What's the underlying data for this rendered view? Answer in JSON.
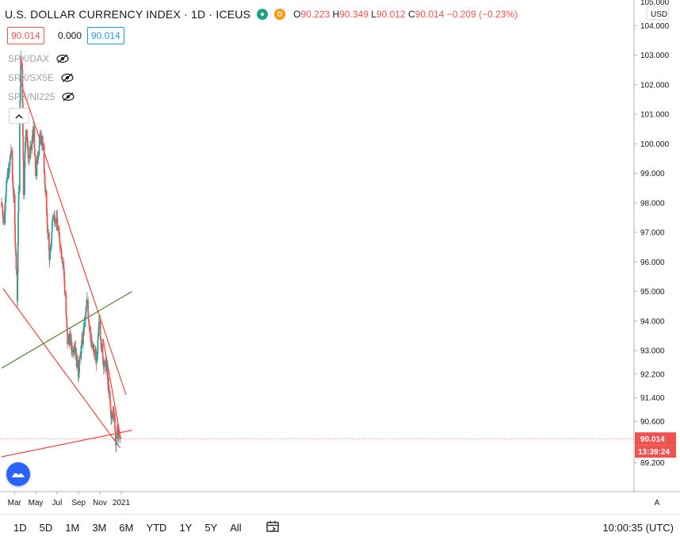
{
  "header": {
    "title": "U.S. DOLLAR CURRENCY INDEX · 1D · ICEUS",
    "delay_badge": "D",
    "ohlc": {
      "o_label": "O",
      "o": "90.223",
      "h_label": "H",
      "h": "90.349",
      "l_label": "L",
      "l": "90.012",
      "c_label": "C",
      "c": "90.014",
      "change": "−0.209 (−0.23%)"
    }
  },
  "price_boxes": {
    "last": "90.014",
    "mid": "0.000",
    "blue": "90.014"
  },
  "comparisons": [
    {
      "label": "SPX/DAX",
      "icon": "eye-crossed-icon"
    },
    {
      "label": "SPX/SX5E",
      "icon": "eye-crossed-icon"
    },
    {
      "label": "SPX/NI225",
      "icon": "eye-crossed-icon"
    }
  ],
  "axis": {
    "currency": "USD",
    "top_partial": "105.000",
    "y_ticks": [
      "104.000",
      "103.000",
      "102.000",
      "101.000",
      "100.000",
      "99.000",
      "98.000",
      "97.000",
      "96.000",
      "95.000",
      "94.000",
      "93.000",
      "92.200",
      "91.400",
      "90.600",
      "89.200"
    ],
    "x_ticks": [
      "Mar",
      "May",
      "Jul",
      "Sep",
      "Nov",
      "2021"
    ],
    "last_price_label": "90.014",
    "countdown_label": "13:39:24",
    "auto_label": "A"
  },
  "colors": {
    "up": "#26a69a",
    "down": "#ef5350",
    "trendline_red": "#e53935",
    "trendline_green": "#4a7a2a",
    "price_tag": "#ef5350"
  },
  "chart_data": {
    "type": "candlestick",
    "x_axis_months": [
      "Mar",
      "May",
      "Jul",
      "Sep",
      "Nov",
      "2021"
    ],
    "ylim": [
      89.0,
      105.0
    ],
    "close_path": [
      {
        "date": "2020-01-24",
        "close": 97.9
      },
      {
        "date": "2020-01-31",
        "close": 97.4
      },
      {
        "date": "2020-02-07",
        "close": 98.7
      },
      {
        "date": "2020-02-14",
        "close": 99.1
      },
      {
        "date": "2020-02-20",
        "close": 99.8
      },
      {
        "date": "2020-02-28",
        "close": 98.1
      },
      {
        "date": "2020-03-06",
        "close": 95.9
      },
      {
        "date": "2020-03-09",
        "close": 94.7
      },
      {
        "date": "2020-03-13",
        "close": 98.5
      },
      {
        "date": "2020-03-19",
        "close": 102.8
      },
      {
        "date": "2020-03-23",
        "close": 102.5
      },
      {
        "date": "2020-03-27",
        "close": 98.4
      },
      {
        "date": "2020-04-03",
        "close": 100.6
      },
      {
        "date": "2020-04-10",
        "close": 99.5
      },
      {
        "date": "2020-04-17",
        "close": 99.8
      },
      {
        "date": "2020-04-24",
        "close": 100.4
      },
      {
        "date": "2020-05-01",
        "close": 99.0
      },
      {
        "date": "2020-05-08",
        "close": 99.7
      },
      {
        "date": "2020-05-15",
        "close": 100.4
      },
      {
        "date": "2020-05-22",
        "close": 99.8
      },
      {
        "date": "2020-05-29",
        "close": 98.3
      },
      {
        "date": "2020-06-05",
        "close": 96.9
      },
      {
        "date": "2020-06-10",
        "close": 96.0
      },
      {
        "date": "2020-06-19",
        "close": 97.6
      },
      {
        "date": "2020-06-30",
        "close": 97.4
      },
      {
        "date": "2020-07-10",
        "close": 96.6
      },
      {
        "date": "2020-07-20",
        "close": 95.8
      },
      {
        "date": "2020-07-31",
        "close": 93.3
      },
      {
        "date": "2020-08-07",
        "close": 93.4
      },
      {
        "date": "2020-08-14",
        "close": 93.0
      },
      {
        "date": "2020-08-21",
        "close": 93.2
      },
      {
        "date": "2020-08-31",
        "close": 92.2
      },
      {
        "date": "2020-09-11",
        "close": 93.3
      },
      {
        "date": "2020-09-25",
        "close": 94.6
      },
      {
        "date": "2020-10-09",
        "close": 93.1
      },
      {
        "date": "2020-10-23",
        "close": 92.7
      },
      {
        "date": "2020-10-30",
        "close": 94.0
      },
      {
        "date": "2020-11-09",
        "close": 92.7
      },
      {
        "date": "2020-11-20",
        "close": 92.4
      },
      {
        "date": "2020-12-04",
        "close": 90.7
      },
      {
        "date": "2020-12-11",
        "close": 90.98
      },
      {
        "date": "2020-12-17",
        "close": 89.8
      },
      {
        "date": "2020-12-21",
        "close": 90.3
      },
      {
        "date": "2020-12-29",
        "close": 90.014
      }
    ],
    "trendlines": [
      {
        "color": "red",
        "from": {
          "date": "2020-03-15",
          "price": 102.2
        },
        "to": {
          "date": "2021-01-15",
          "price": 91.5
        }
      },
      {
        "color": "red",
        "from": {
          "date": "2020-01-28",
          "price": 95.1
        },
        "to": {
          "date": "2020-12-29",
          "price": 89.7
        }
      },
      {
        "color": "green",
        "from": {
          "date": "2020-01-24",
          "price": 92.4
        },
        "to": {
          "date": "2021-02-01",
          "price": 95.0
        }
      },
      {
        "color": "red",
        "from": {
          "date": "2020-01-24",
          "price": 89.4
        },
        "to": {
          "date": "2021-02-01",
          "price": 90.3
        }
      },
      {
        "color": "red",
        "from": {
          "date": "2020-11-10",
          "price": 93.4
        },
        "to": {
          "date": "2020-12-31",
          "price": 90.0
        }
      }
    ],
    "last_price": 90.014
  },
  "timeframes": [
    "1D",
    "5D",
    "1M",
    "3M",
    "6M",
    "YTD",
    "1Y",
    "5Y",
    "All"
  ],
  "clock": "10:00:35 (UTC)"
}
